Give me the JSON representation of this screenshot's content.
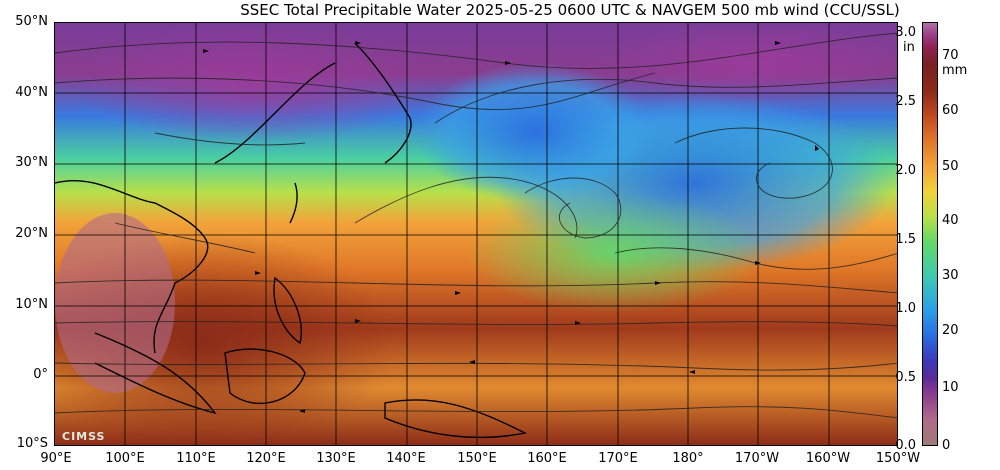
{
  "title": "SSEC Total Precipitable Water  2025-05-25 0600 UTC & NAVGEM 500 mb wind (CCU/SSL)",
  "map": {
    "lat_labels": [
      "50°N",
      "40°N",
      "30°N",
      "20°N",
      "10°N",
      "0°",
      "10°S"
    ],
    "lon_labels": [
      "90°E",
      "100°E",
      "110°E",
      "120°E",
      "130°E",
      "140°E",
      "150°E",
      "160°E",
      "170°E",
      "180°",
      "170°W",
      "160°W",
      "150°W"
    ],
    "extent": {
      "lon_min": 90,
      "lon_max": 210,
      "lat_min": -10,
      "lat_max": 50
    },
    "logo_text": "CIMSS"
  },
  "colorbar": {
    "inch_unit": "in",
    "mm_unit": "mm",
    "inch_ticks": [
      "3.0",
      "2.5",
      "2.0",
      "1.5",
      "1.0",
      "0.5",
      "0.0"
    ],
    "mm_ticks": [
      "70",
      "60",
      "50",
      "40",
      "30",
      "20",
      "10",
      "0"
    ],
    "inch_values": [
      3.0,
      2.5,
      2.0,
      1.5,
      1.0,
      0.5,
      0.0
    ],
    "mm_values": [
      70,
      60,
      50,
      40,
      30,
      20,
      10,
      0
    ],
    "range_in": [
      0,
      3.1
    ],
    "range_mm": [
      0,
      78
    ]
  },
  "colors": {
    "dry": "#8a3d8f",
    "low": "#2a6ee0",
    "mid": "#62d86a",
    "high": "#f2a33a",
    "very_high": "#8a2a18"
  }
}
